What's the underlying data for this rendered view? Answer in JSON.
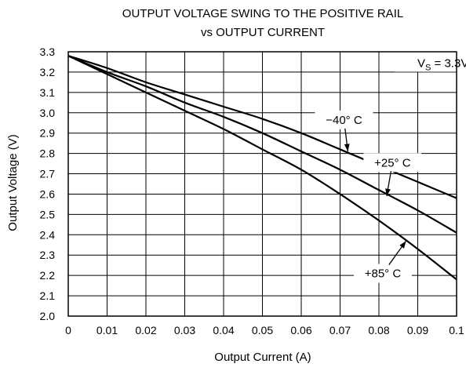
{
  "chart_data": {
    "type": "line",
    "title": "OUTPUT VOLTAGE SWING TO THE POSITIVE RAIL",
    "subtitle": "vs OUTPUT CURRENT",
    "xlabel": "Output Current (A)",
    "ylabel": "Output Voltage (V)",
    "xlim": [
      0,
      0.1
    ],
    "ylim": [
      2.0,
      3.3
    ],
    "xticks": [
      0,
      0.01,
      0.02,
      0.03,
      0.04,
      0.05,
      0.06,
      0.07,
      0.08,
      0.09,
      0.1
    ],
    "xtick_labels": [
      "0",
      "0.01",
      "0.02",
      "0.03",
      "0.04",
      "0.05",
      "0.06",
      "0.07",
      "0.08",
      "0.09",
      "0.1"
    ],
    "yticks": [
      2.0,
      2.1,
      2.2,
      2.3,
      2.4,
      2.5,
      2.6,
      2.7,
      2.8,
      2.9,
      3.0,
      3.1,
      3.2,
      3.3
    ],
    "ytick_labels": [
      "2.0",
      "2.1",
      "2.2",
      "2.3",
      "2.4",
      "2.5",
      "2.6",
      "2.7",
      "2.8",
      "2.9",
      "3.0",
      "3.1",
      "3.2",
      "3.3"
    ],
    "grid": true,
    "annotation": {
      "base": "V",
      "sub": "S",
      "rest": " = 3.3V"
    },
    "series": [
      {
        "name": "−40° C",
        "x": [
          0,
          0.01,
          0.02,
          0.03,
          0.04,
          0.05,
          0.06,
          0.07,
          0.08,
          0.09,
          0.1
        ],
        "y": [
          3.28,
          3.22,
          3.15,
          3.09,
          3.03,
          2.97,
          2.9,
          2.82,
          2.74,
          2.66,
          2.58
        ]
      },
      {
        "name": "+25° C",
        "x": [
          0,
          0.01,
          0.02,
          0.03,
          0.04,
          0.05,
          0.06,
          0.07,
          0.08,
          0.09,
          0.1
        ],
        "y": [
          3.28,
          3.2,
          3.13,
          3.05,
          2.98,
          2.9,
          2.81,
          2.72,
          2.62,
          2.52,
          2.41
        ]
      },
      {
        "name": "+85° C",
        "x": [
          0,
          0.01,
          0.02,
          0.03,
          0.04,
          0.05,
          0.06,
          0.07,
          0.08,
          0.09,
          0.1
        ],
        "y": [
          3.28,
          3.19,
          3.1,
          3.01,
          2.92,
          2.82,
          2.72,
          2.6,
          2.47,
          2.33,
          2.18
        ]
      }
    ],
    "callouts": [
      {
        "series": 0,
        "label": "−40° C",
        "anchor_x": 0.072,
        "anchor_y": 2.81,
        "text_x": 0.071,
        "text_y": 2.965
      },
      {
        "series": 1,
        "label": "+25° C",
        "anchor_x": 0.082,
        "anchor_y": 2.59,
        "text_x": 0.0835,
        "text_y": 2.755
      },
      {
        "series": 2,
        "label": "+85° C",
        "anchor_x": 0.087,
        "anchor_y": 2.37,
        "text_x": 0.081,
        "text_y": 2.21
      }
    ]
  }
}
